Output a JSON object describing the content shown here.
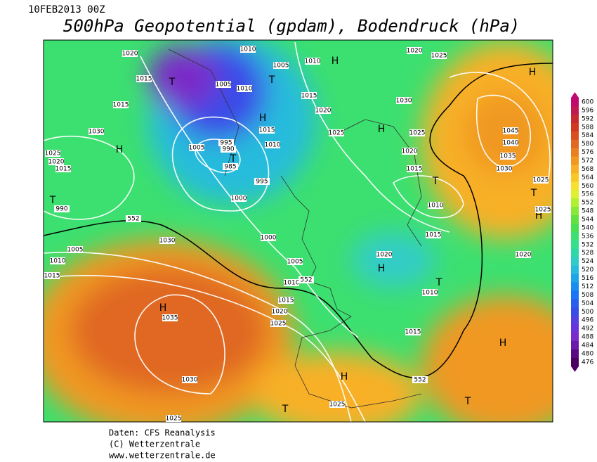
{
  "header": {
    "date": "10FEB2013 00Z",
    "title": "500hPa Geopotential (gpdam), Bodendruck (hPa)"
  },
  "colorbar": {
    "levels": [
      600,
      596,
      592,
      588,
      584,
      580,
      576,
      572,
      568,
      564,
      560,
      556,
      552,
      548,
      544,
      540,
      536,
      532,
      528,
      524,
      520,
      516,
      512,
      508,
      504,
      500,
      496,
      492,
      488,
      484,
      480,
      476
    ],
    "colors": [
      "#c00870",
      "#c01850",
      "#c82830",
      "#d03820",
      "#d85020",
      "#e06820",
      "#e88020",
      "#f09820",
      "#f8b028",
      "#f8c828",
      "#f8e030",
      "#e0f030",
      "#b0f030",
      "#88e838",
      "#64e040",
      "#48e050",
      "#3ce070",
      "#34e08c",
      "#30d8a8",
      "#30ccc8",
      "#28bcdc",
      "#20a4e8",
      "#1a8cf0",
      "#1a74f5",
      "#2a5ef0",
      "#3a4ce8",
      "#5540e0",
      "#6a35d8",
      "#7a2ac8",
      "#6a1aa8",
      "#5a0a82",
      "#4b0060"
    ]
  },
  "map": {
    "labels": [
      "1020",
      "1010",
      "1005",
      "1010",
      "H",
      "1020",
      "1025",
      "H",
      "T",
      "1015",
      "1005",
      "1010",
      "T",
      "1015",
      "1015",
      "1030",
      "1020",
      "H",
      "1030",
      "H",
      "1015",
      "1025",
      "H",
      "1025",
      "1045",
      "1005",
      "995",
      "990",
      "1010",
      "1020",
      "1040",
      "1025",
      "1020",
      "T",
      "985",
      "1015",
      "1015",
      "1035",
      "1030",
      "995",
      "T",
      "1025",
      "T",
      "1000",
      "1010",
      "T",
      "990",
      "H",
      "1025",
      "552",
      "1030",
      "1005",
      "1000",
      "1015",
      "1020",
      "1020",
      "1010",
      "1015",
      "H",
      "1005",
      "1010",
      "552",
      "T",
      "1010",
      "H",
      "1035",
      "1015",
      "1020",
      "1025",
      "1015",
      "H",
      "1030",
      "H",
      "552",
      "T",
      "1025",
      "T",
      "1025"
    ]
  },
  "footer": {
    "lines": [
      "Daten: CFS Reanalysis",
      "(C) Wetterzentrale",
      "www.wetterzentrale.de"
    ]
  }
}
